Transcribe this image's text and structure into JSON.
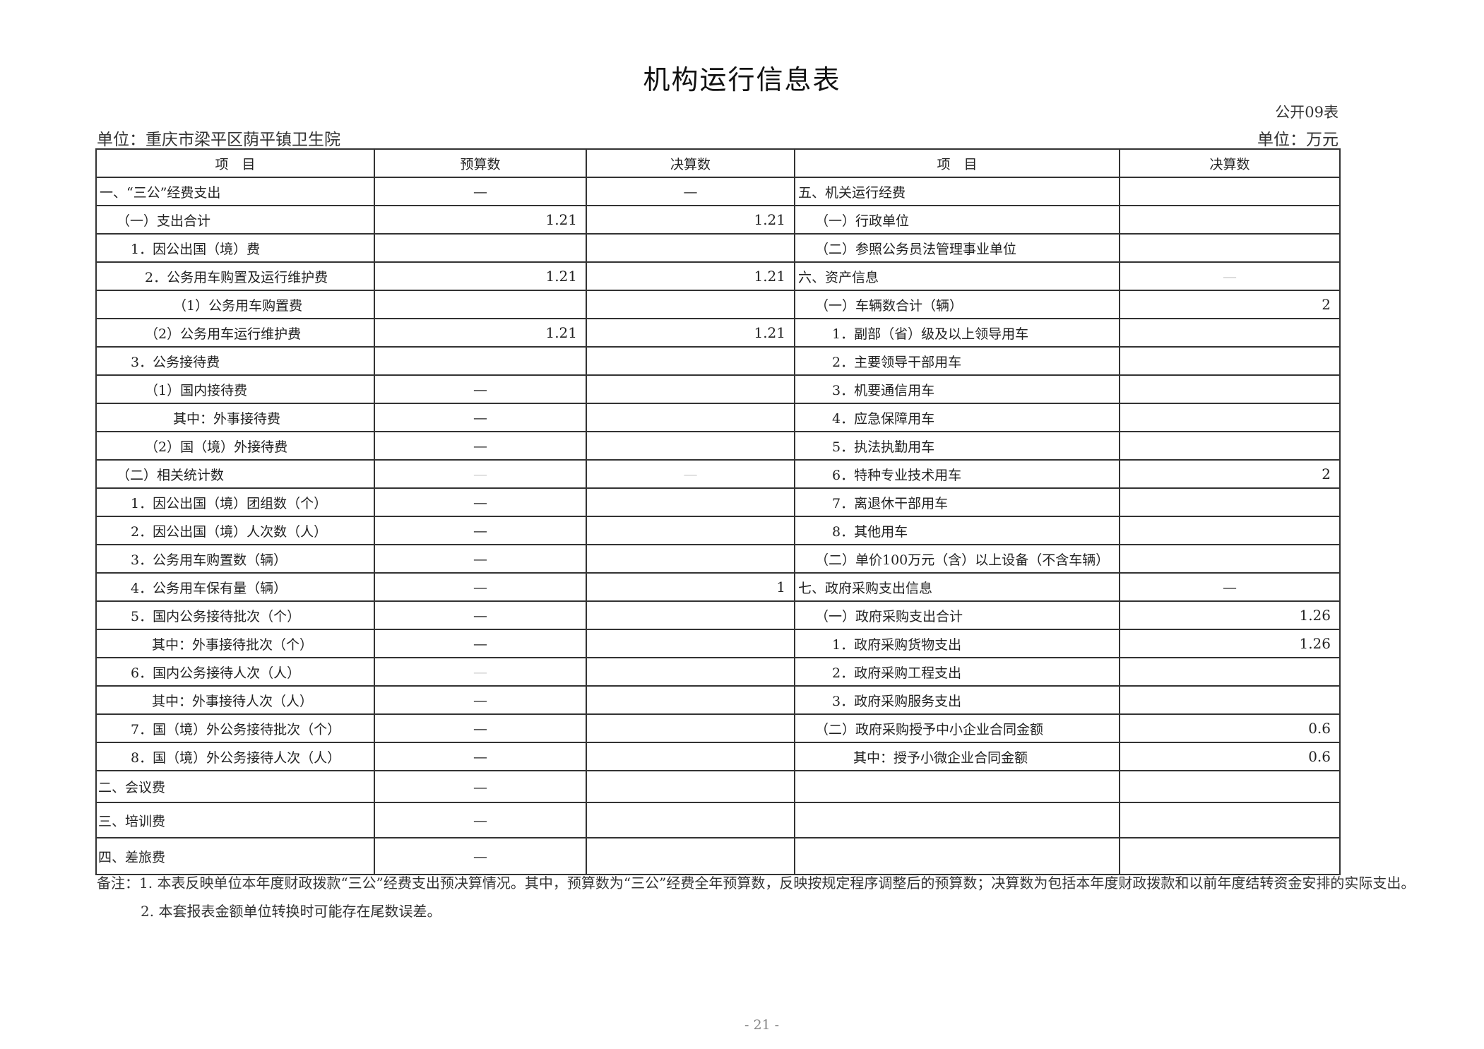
{
  "title": "机构运行信息表",
  "form_no": "公开09表",
  "unit_org": "单位：重庆市梁平区荫平镇卫生院",
  "unit_currency": "单位：万元",
  "table": {
    "headers": [
      "项　目",
      "预算数",
      "决算数",
      "项　目",
      "决算数"
    ],
    "rows": [
      {
        "left_item": "一、“三公”经费支出",
        "budget": "—",
        "final": "—",
        "right_item": "五、机关运行经费",
        "right_final": ""
      },
      {
        "left_item": "（一）支出合计",
        "budget": "1.21",
        "final": "1.21",
        "right_item": "（一）行政单位",
        "right_final": ""
      },
      {
        "left_item": "1．因公出国（境）费",
        "budget": "",
        "final": "",
        "right_item": "（二）参照公务员法管理事业单位",
        "right_final": ""
      },
      {
        "left_item": "2．公务用车购置及运行维护费",
        "budget": "1.21",
        "final": "1.21",
        "right_item": "六、资产信息",
        "right_final": "—"
      },
      {
        "left_item": "（1）公务用车购置费",
        "budget": "",
        "final": "",
        "right_item": "（一）车辆数合计（辆）",
        "right_final": "2"
      },
      {
        "left_item": "（2）公务用车运行维护费",
        "budget": "1.21",
        "final": "1.21",
        "right_item": "1．副部（省）级及以上领导用车",
        "right_final": ""
      },
      {
        "left_item": "3．公务接待费",
        "budget": "",
        "final": "",
        "right_item": "2．主要领导干部用车",
        "right_final": ""
      },
      {
        "left_item": "（1）国内接待费",
        "budget": "—",
        "final": "",
        "right_item": "3．机要通信用车",
        "right_final": ""
      },
      {
        "left_item": "其中：外事接待费",
        "budget": "—",
        "final": "",
        "right_item": "4．应急保障用车",
        "right_final": ""
      },
      {
        "left_item": "（2）国（境）外接待费",
        "budget": "—",
        "final": "",
        "right_item": "5．执法执勤用车",
        "right_final": ""
      },
      {
        "left_item": "（二）相关统计数",
        "budget": "—",
        "final": "—",
        "right_item": "6．特种专业技术用车",
        "right_final": "2"
      },
      {
        "left_item": "1．因公出国（境）团组数（个）",
        "budget": "—",
        "final": "",
        "right_item": "7．离退休干部用车",
        "right_final": ""
      },
      {
        "left_item": "2．因公出国（境）人次数（人）",
        "budget": "—",
        "final": "",
        "right_item": "8．其他用车",
        "right_final": ""
      },
      {
        "left_item": "3．公务用车购置数（辆）",
        "budget": "—",
        "final": "",
        "right_item": "（二）单价100万元（含）以上设备（不含车辆）",
        "right_final": ""
      },
      {
        "left_item": "4．公务用车保有量（辆）",
        "budget": "—",
        "final": "1",
        "right_item": "七、政府采购支出信息",
        "right_final": "—"
      },
      {
        "left_item": "5．国内公务接待批次（个）",
        "budget": "—",
        "final": "",
        "right_item": "（一）政府采购支出合计",
        "right_final": "1.26"
      },
      {
        "left_item": "其中：外事接待批次（个）",
        "budget": "—",
        "final": "",
        "right_item": "1．政府采购货物支出",
        "right_final": "1.26"
      },
      {
        "left_item": "6．国内公务接待人次（人）",
        "budget": "—",
        "final": "",
        "right_item": "2．政府采购工程支出",
        "right_final": ""
      },
      {
        "left_item": "其中：外事接待人次（人）",
        "budget": "—",
        "final": "",
        "right_item": "3．政府采购服务支出",
        "right_final": ""
      },
      {
        "left_item": "7．国（境）外公务接待批次（个）",
        "budget": "—",
        "final": "",
        "right_item": "（二）政府采购授予中小企业合同金额",
        "right_final": "0.6"
      },
      {
        "left_item": "8．国（境）外公务接待人次（人）",
        "budget": "—",
        "final": "",
        "right_item": "其中：授予小微企业合同金额",
        "right_final": "0.6"
      },
      {
        "left_item": "二、会议费",
        "budget": "—",
        "final": "",
        "right_item": "",
        "right_final": ""
      },
      {
        "left_item": "三、培训费",
        "budget": "—",
        "final": "",
        "right_item": "",
        "right_final": ""
      },
      {
        "left_item": "四、差旅费",
        "budget": "—",
        "final": "",
        "right_item": "",
        "right_final": ""
      }
    ]
  },
  "notes": {
    "note1": "备注：1. 本表反映单位本年度财政拨款“三公”经费支出预决算情况。其中，预算数为“三公”经费全年预算数，反映按规定程序调整后的预算数；决算数为包括本年度财政拨款和以前年度结转资金安排的实际支出。",
    "note2": "2. 本套报表金额单位转换时可能存在尾数误差。"
  },
  "page_number": "- 21 -"
}
